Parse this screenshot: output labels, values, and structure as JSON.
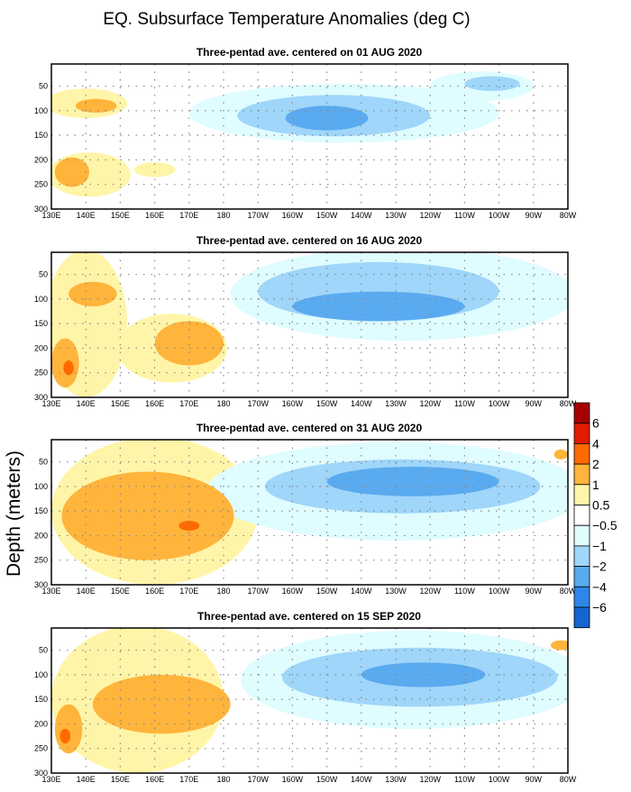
{
  "chart_data": {
    "type": "heatmap",
    "title": "EQ. Subsurface Temperature Anomalies (deg C)",
    "ylabel": "Depth (meters)",
    "xlim_deg_east": [
      130,
      280
    ],
    "ylim": [
      5,
      300
    ],
    "x_ticks": [
      {
        "v": 130,
        "l": "130E"
      },
      {
        "v": 140,
        "l": "140E"
      },
      {
        "v": 150,
        "l": "150E"
      },
      {
        "v": 160,
        "l": "160E"
      },
      {
        "v": 170,
        "l": "170E"
      },
      {
        "v": 180,
        "l": "180"
      },
      {
        "v": 190,
        "l": "170W"
      },
      {
        "v": 200,
        "l": "160W"
      },
      {
        "v": 210,
        "l": "150W"
      },
      {
        "v": 220,
        "l": "140W"
      },
      {
        "v": 230,
        "l": "130W"
      },
      {
        "v": 240,
        "l": "120W"
      },
      {
        "v": 250,
        "l": "110W"
      },
      {
        "v": 260,
        "l": "100W"
      },
      {
        "v": 270,
        "l": "90W"
      },
      {
        "v": 280,
        "l": "80W"
      }
    ],
    "y_ticks": [
      "50",
      "100",
      "150",
      "200",
      "250",
      "300"
    ],
    "legend": {
      "labels": [
        "6",
        "4",
        "2",
        "1",
        "0.5",
        "−0.5",
        "−1",
        "−2",
        "−4",
        "−6"
      ],
      "colors": [
        "#a50000",
        "#e11b00",
        "#ff6a00",
        "#ffb43c",
        "#fff5a8",
        "#ffffff",
        "#dffcff",
        "#9fd6fa",
        "#5aaaf0",
        "#2f86e8",
        "#1565d0"
      ]
    },
    "level_colors": {
      "2": "#ff6a00",
      "1": "#ffb43c",
      "0.5": "#fff5a8",
      "-0.5": "#dffcff",
      "-1": "#9fd6fa",
      "-2": "#5aaaf0"
    },
    "panels": [
      {
        "title": "Three-pentad ave. centered on 01 AUG 2020",
        "regions": [
          {
            "level": "0.5",
            "lon": 140,
            "depth": 85,
            "rlon": 12,
            "rdep": 30
          },
          {
            "level": "0.5",
            "lon": 141,
            "depth": 230,
            "rlon": 12,
            "rdep": 45
          },
          {
            "level": "0.5",
            "lon": 160,
            "depth": 220,
            "rlon": 6,
            "rdep": 15
          },
          {
            "level": "1",
            "lon": 143,
            "depth": 90,
            "rlon": 6,
            "rdep": 14
          },
          {
            "level": "1",
            "lon": 136,
            "depth": 225,
            "rlon": 5,
            "rdep": 30
          },
          {
            "level": "-0.5",
            "lon": 215,
            "depth": 105,
            "rlon": 45,
            "rdep": 60
          },
          {
            "level": "-0.5",
            "lon": 255,
            "depth": 50,
            "rlon": 15,
            "rdep": 30
          },
          {
            "level": "-1",
            "lon": 212,
            "depth": 110,
            "rlon": 28,
            "rdep": 42
          },
          {
            "level": "-1",
            "lon": 258,
            "depth": 45,
            "rlon": 8,
            "rdep": 15
          },
          {
            "level": "-2",
            "lon": 210,
            "depth": 115,
            "rlon": 12,
            "rdep": 25
          }
        ]
      },
      {
        "title": "Three-pentad ave. centered on 16 AUG 2020",
        "regions": [
          {
            "level": "0.5",
            "lon": 140,
            "depth": 150,
            "rlon": 12,
            "rdep": 150
          },
          {
            "level": "0.5",
            "lon": 165,
            "depth": 200,
            "rlon": 16,
            "rdep": 70
          },
          {
            "level": "-0.5",
            "lon": 232,
            "depth": 90,
            "rlon": 50,
            "rdep": 95
          },
          {
            "level": "1",
            "lon": 142,
            "depth": 90,
            "rlon": 7,
            "rdep": 25
          },
          {
            "level": "1",
            "lon": 170,
            "depth": 190,
            "rlon": 10,
            "rdep": 45
          },
          {
            "level": "1",
            "lon": 134,
            "depth": 230,
            "rlon": 4,
            "rdep": 50
          },
          {
            "level": "2",
            "lon": 135,
            "depth": 240,
            "rlon": 1.5,
            "rdep": 15
          },
          {
            "level": "-1",
            "lon": 225,
            "depth": 85,
            "rlon": 35,
            "rdep": 60
          },
          {
            "level": "-2",
            "lon": 225,
            "depth": 115,
            "rlon": 25,
            "rdep": 30
          }
        ]
      },
      {
        "title": "Three-pentad ave. centered on 31 AUG 2020",
        "regions": [
          {
            "level": "0.5",
            "lon": 160,
            "depth": 150,
            "rlon": 30,
            "rdep": 150
          },
          {
            "level": "1",
            "lon": 158,
            "depth": 160,
            "rlon": 25,
            "rdep": 90
          },
          {
            "level": "2",
            "lon": 170,
            "depth": 180,
            "rlon": 3,
            "rdep": 10
          },
          {
            "level": "-0.5",
            "lon": 230,
            "depth": 110,
            "rlon": 55,
            "rdep": 100
          },
          {
            "level": "-1",
            "lon": 232,
            "depth": 100,
            "rlon": 40,
            "rdep": 55
          },
          {
            "level": "-2",
            "lon": 235,
            "depth": 90,
            "rlon": 25,
            "rdep": 30
          },
          {
            "level": "1",
            "lon": 278,
            "depth": 35,
            "rlon": 2,
            "rdep": 10
          }
        ]
      },
      {
        "title": "Three-pentad ave. centered on 15 SEP 2020",
        "regions": [
          {
            "level": "0.5",
            "lon": 155,
            "depth": 150,
            "rlon": 25,
            "rdep": 150
          },
          {
            "level": "1",
            "lon": 162,
            "depth": 160,
            "rlon": 20,
            "rdep": 60
          },
          {
            "level": "1",
            "lon": 135,
            "depth": 210,
            "rlon": 4,
            "rdep": 50
          },
          {
            "level": "2",
            "lon": 134,
            "depth": 225,
            "rlon": 1.5,
            "rdep": 15
          },
          {
            "level": "-0.5",
            "lon": 235,
            "depth": 110,
            "rlon": 50,
            "rdep": 100
          },
          {
            "level": "-1",
            "lon": 237,
            "depth": 105,
            "rlon": 40,
            "rdep": 60
          },
          {
            "level": "-2",
            "lon": 238,
            "depth": 100,
            "rlon": 18,
            "rdep": 25
          },
          {
            "level": "1",
            "lon": 278,
            "depth": 40,
            "rlon": 3,
            "rdep": 10
          }
        ]
      }
    ]
  }
}
